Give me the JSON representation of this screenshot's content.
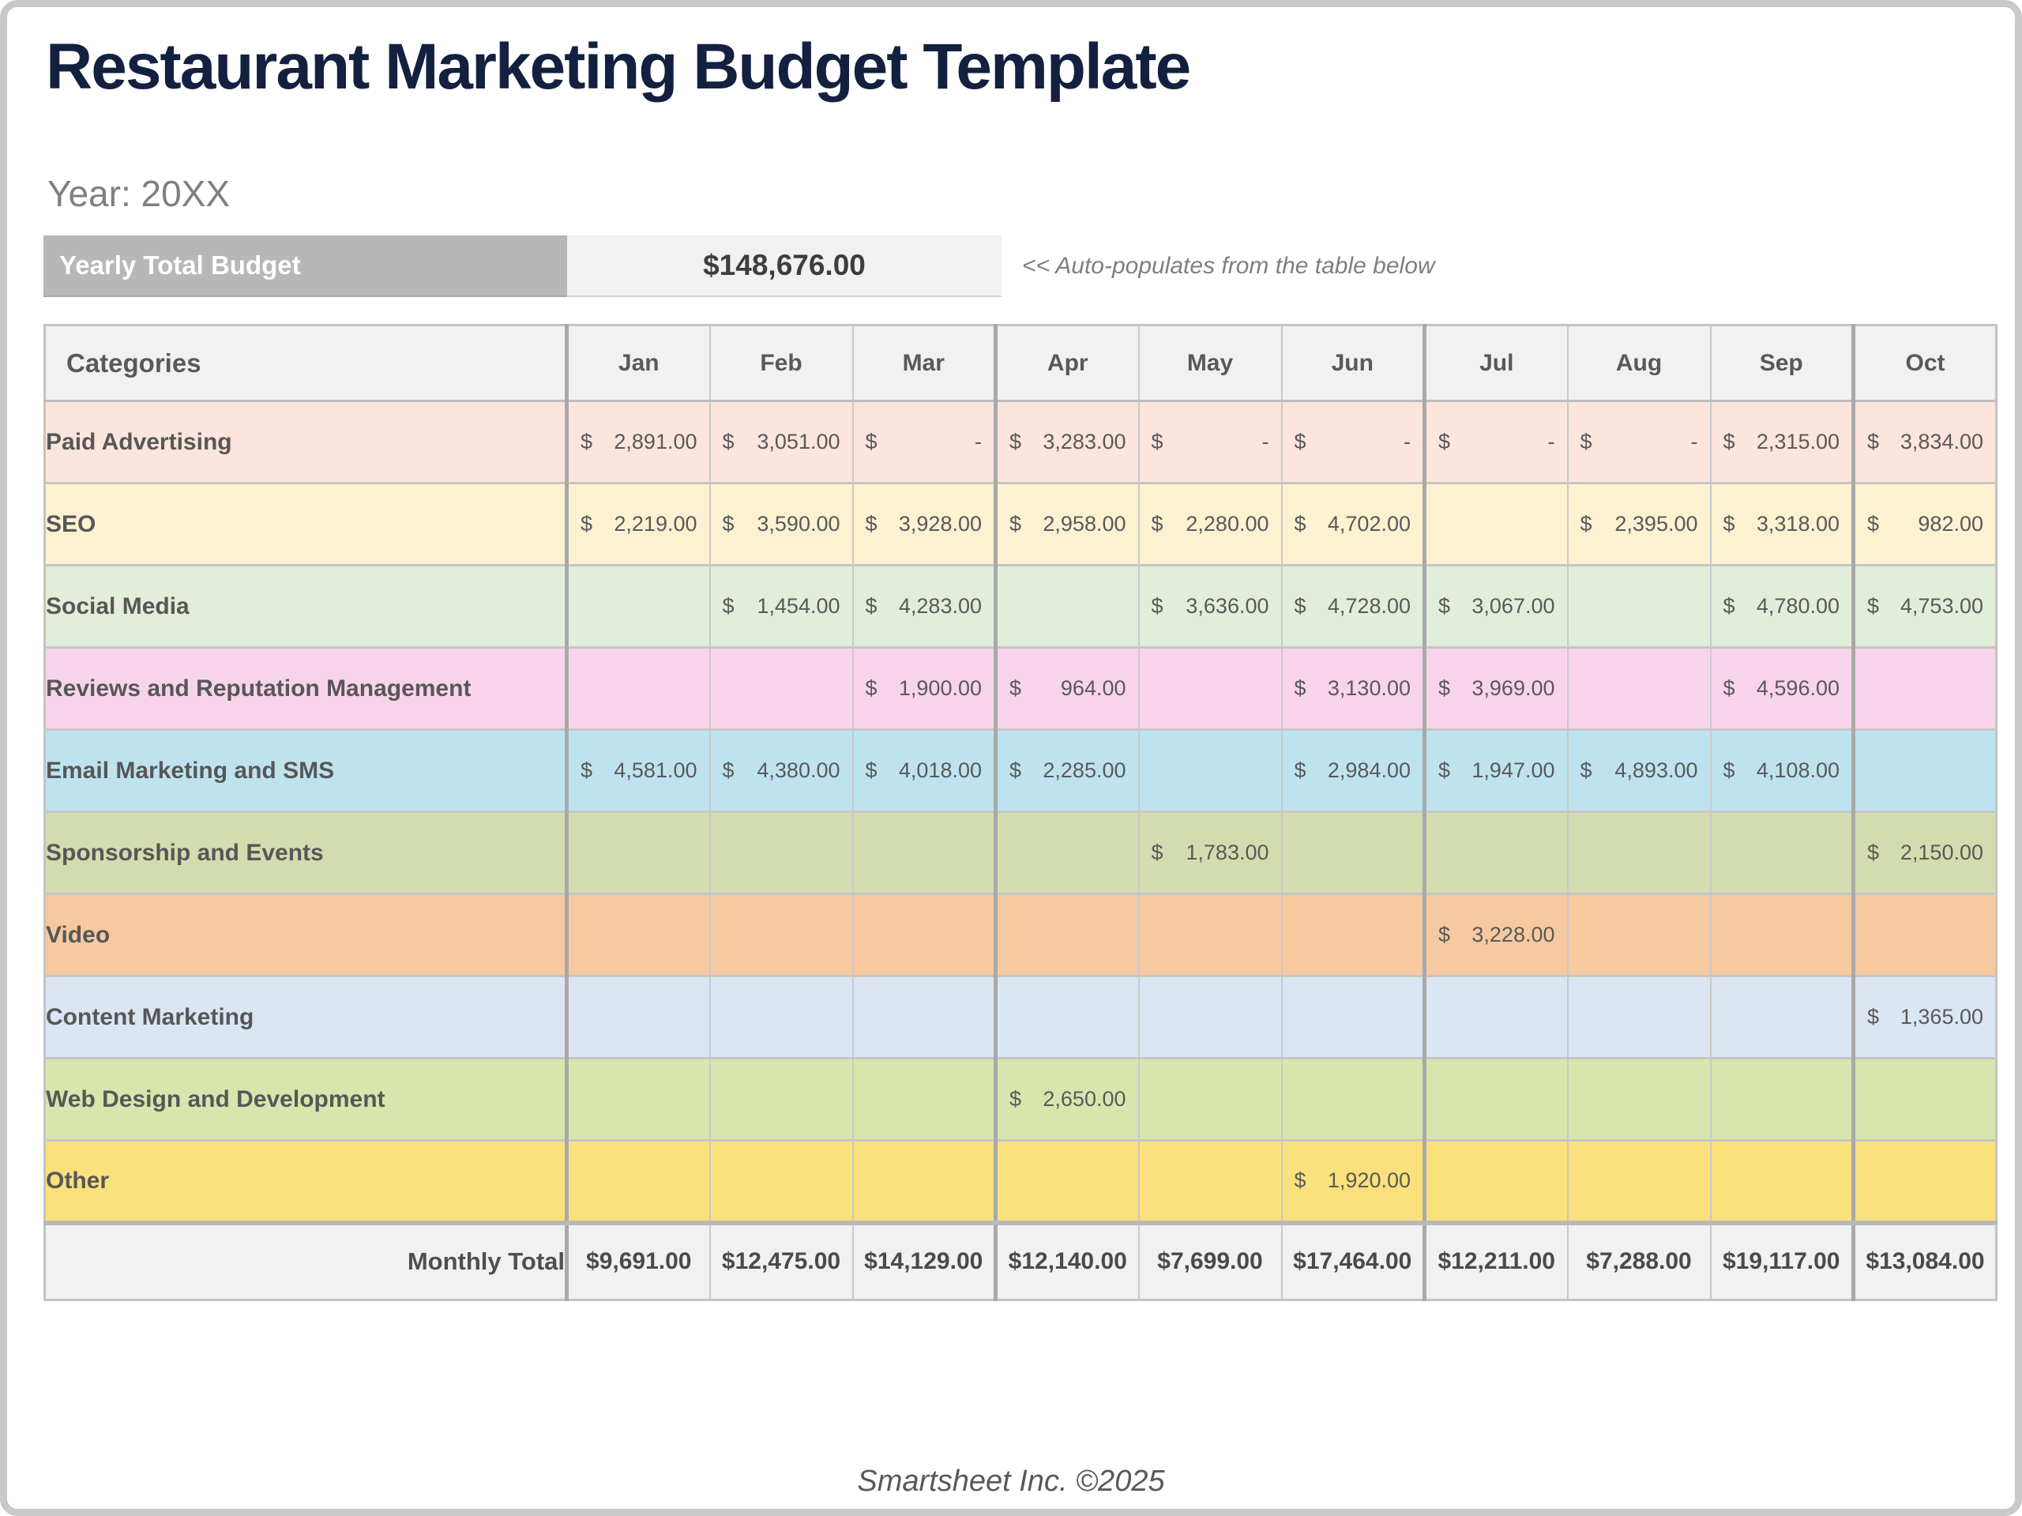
{
  "page": {
    "title": "Restaurant Marketing Budget Template",
    "year_label": "Year: 20XX",
    "footer": "Smartsheet Inc. ©2025"
  },
  "summary": {
    "label": "Yearly Total Budget",
    "value": "$148,676.00",
    "note": "<< Auto-populates from the table below"
  },
  "colors": {
    "title": "#13203f",
    "frame_border": "#c9c9c9",
    "summary_bar": "#b7b7b7",
    "summary_value_bg": "#f1f1f1",
    "header_bg": "#f1f1f1",
    "grid_line": "#c9c9c9",
    "quarter_line": "#a9a9a9",
    "cell_text": "#595959"
  },
  "table": {
    "categories_header": "Categories",
    "months": [
      "Jan",
      "Feb",
      "Mar",
      "Apr",
      "May",
      "Jun",
      "Jul",
      "Aug",
      "Sep",
      "Oct"
    ],
    "currency_symbol": "$",
    "rows": [
      {
        "category": "Paid Advertising",
        "color": "#fbe5dc",
        "values": [
          "2,891.00",
          "3,051.00",
          "-",
          "3,283.00",
          "-",
          "-",
          "-",
          "-",
          "2,315.00",
          "3,834.00"
        ]
      },
      {
        "category": "SEO",
        "color": "#fcf2d1",
        "values": [
          "2,219.00",
          "3,590.00",
          "3,928.00",
          "2,958.00",
          "2,280.00",
          "4,702.00",
          null,
          "2,395.00",
          "3,318.00",
          "982.00"
        ]
      },
      {
        "category": "Social Media",
        "color": "#e3eeda",
        "values": [
          null,
          "1,454.00",
          "4,283.00",
          null,
          "3,636.00",
          "4,728.00",
          "3,067.00",
          null,
          "4,780.00",
          "4,753.00"
        ]
      },
      {
        "category": "Reviews and Reputation Management",
        "color": "#f8d4eb",
        "values": [
          null,
          null,
          "1,900.00",
          "964.00",
          null,
          "3,130.00",
          "3,969.00",
          null,
          "4,596.00",
          null
        ]
      },
      {
        "category": "Email Marketing and SMS",
        "color": "#bfe3ee",
        "values": [
          "4,581.00",
          "4,380.00",
          "4,018.00",
          "2,285.00",
          null,
          "2,984.00",
          "1,947.00",
          "4,893.00",
          "4,108.00",
          null
        ]
      },
      {
        "category": "Sponsorship and Events",
        "color": "#d3dcaf",
        "values": [
          null,
          null,
          null,
          null,
          "1,783.00",
          null,
          null,
          null,
          null,
          "2,150.00"
        ]
      },
      {
        "category": "Video",
        "color": "#f7c9a1",
        "values": [
          null,
          null,
          null,
          null,
          null,
          null,
          "3,228.00",
          null,
          null,
          null
        ]
      },
      {
        "category": "Content Marketing",
        "color": "#dbe6f2",
        "values": [
          null,
          null,
          null,
          null,
          null,
          null,
          null,
          null,
          null,
          "1,365.00"
        ]
      },
      {
        "category": "Web Design and Development",
        "color": "#d8e6ad",
        "values": [
          null,
          null,
          null,
          "2,650.00",
          null,
          null,
          null,
          null,
          null,
          null
        ]
      },
      {
        "category": "Other",
        "color": "#fbe17c",
        "values": [
          null,
          null,
          null,
          null,
          null,
          "1,920.00",
          null,
          null,
          null,
          null
        ]
      }
    ],
    "monthly_total_label": "Monthly Total",
    "monthly_totals": [
      "$9,691.00",
      "$12,475.00",
      "$14,129.00",
      "$12,140.00",
      "$7,699.00",
      "$17,464.00",
      "$12,211.00",
      "$7,288.00",
      "$19,117.00",
      "$13,084.00"
    ]
  }
}
